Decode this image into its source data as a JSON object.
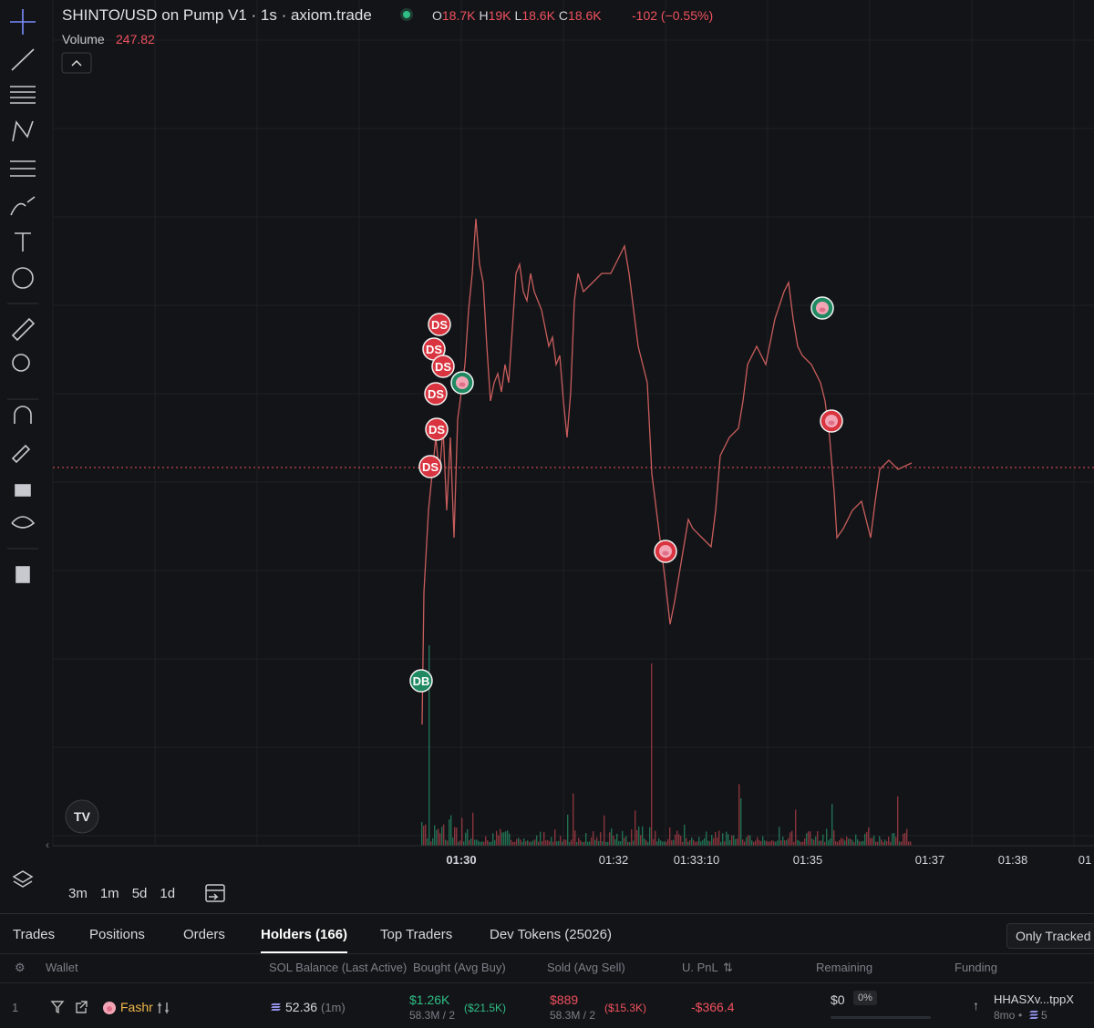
{
  "header": {
    "title": "SHINTO/USD on Pump V1 · 1s · axiom.trade",
    "ohlc": [
      {
        "key": "O",
        "value": "18.7K"
      },
      {
        "key": "H",
        "value": "19K"
      },
      {
        "key": "L",
        "value": "18.6K"
      },
      {
        "key": "C",
        "value": "18.6K"
      }
    ],
    "change": "-102 (−0.55%)",
    "volume_label": "Volume",
    "volume_value": "247.82"
  },
  "markers": [
    "DS",
    "DS",
    "DS",
    "DS",
    "DS",
    "DS",
    "DB"
  ],
  "x_axis": [
    "01:30",
    "01:32",
    "01:33:10",
    "01:35",
    "01:37",
    "01:38",
    "01"
  ],
  "timeframes": [
    "3m",
    "1m",
    "5d",
    "1d"
  ],
  "tabs": [
    "Trades",
    "Positions",
    "Orders",
    "Holders (166)",
    "Top Traders",
    "Dev Tokens (25026)"
  ],
  "only_tracked": "Only Tracked",
  "columns": [
    "Wallet",
    "SOL Balance (Last Active)",
    "Bought (Avg Buy)",
    "Sold (Avg Sell)",
    "U. PnL",
    "Remaining",
    "Funding"
  ],
  "row": {
    "rank": "1",
    "wallet": "Fashr",
    "sol": "52.36",
    "sol_active": "(1m)",
    "bought": "$1.26K",
    "bought_sub": "58.3M / 2",
    "bought_avg": "($21.5K)",
    "sold": "$889",
    "sold_sub": "58.3M / 2",
    "sold_avg": "($15.3K)",
    "pnl": "-$366.4",
    "remaining": "$0",
    "remaining_pct": "0%",
    "funding": "HHASXv...tppX",
    "funding_age": "8mo",
    "funding_count": "5"
  }
}
